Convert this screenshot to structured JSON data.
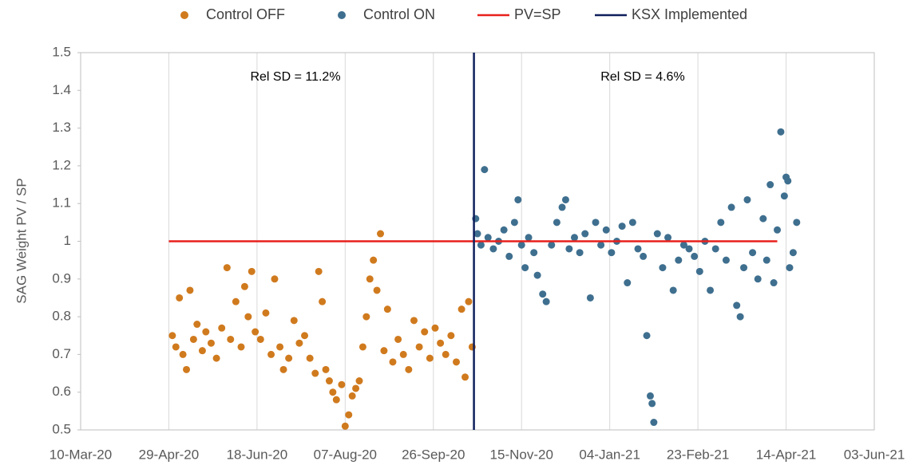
{
  "chart_data": {
    "type": "scatter",
    "y_label": "SAG Weight PV / SP",
    "annotations": [
      "Rel SD = 11.2%",
      "Rel SD = 4.6%"
    ],
    "xlim": [
      "10-Mar-20",
      "03-Jun-21"
    ],
    "xticks": [
      "10-Mar-20",
      "29-Apr-20",
      "18-Jun-20",
      "07-Aug-20",
      "26-Sep-20",
      "15-Nov-20",
      "04-Jan-21",
      "23-Feb-21",
      "14-Apr-21",
      "03-Jun-21"
    ],
    "ylim": [
      0.5,
      1.5
    ],
    "yticks": [
      0.5,
      0.6,
      0.7,
      0.8,
      0.9,
      1,
      1.1,
      1.2,
      1.3,
      1.4,
      1.5
    ],
    "grid": "x",
    "series": [
      {
        "name": "Control OFF",
        "color": "#d07a1e",
        "style": "marker",
        "x": [
          "01-May-20",
          "03-May-20",
          "05-May-20",
          "07-May-20",
          "09-May-20",
          "11-May-20",
          "13-May-20",
          "15-May-20",
          "18-May-20",
          "20-May-20",
          "23-May-20",
          "26-May-20",
          "29-May-20",
          "01-Jun-20",
          "03-Jun-20",
          "06-Jun-20",
          "09-Jun-20",
          "11-Jun-20",
          "13-Jun-20",
          "15-Jun-20",
          "17-Jun-20",
          "20-Jun-20",
          "23-Jun-20",
          "26-Jun-20",
          "28-Jun-20",
          "01-Jul-20",
          "03-Jul-20",
          "06-Jul-20",
          "09-Jul-20",
          "12-Jul-20",
          "15-Jul-20",
          "18-Jul-20",
          "21-Jul-20",
          "23-Jul-20",
          "25-Jul-20",
          "27-Jul-20",
          "29-Jul-20",
          "31-Jul-20",
          "02-Aug-20",
          "05-Aug-20",
          "07-Aug-20",
          "09-Aug-20",
          "11-Aug-20",
          "13-Aug-20",
          "15-Aug-20",
          "17-Aug-20",
          "19-Aug-20",
          "21-Aug-20",
          "23-Aug-20",
          "25-Aug-20",
          "27-Aug-20",
          "29-Aug-20",
          "31-Aug-20",
          "03-Sep-20",
          "06-Sep-20",
          "09-Sep-20",
          "12-Sep-20",
          "15-Sep-20",
          "18-Sep-20",
          "21-Sep-20",
          "24-Sep-20",
          "27-Sep-20",
          "30-Sep-20",
          "03-Oct-20",
          "06-Oct-20",
          "09-Oct-20",
          "12-Oct-20",
          "14-Oct-20",
          "16-Oct-20",
          "18-Oct-20"
        ],
        "values": [
          0.75,
          0.72,
          0.85,
          0.7,
          0.66,
          0.87,
          0.74,
          0.78,
          0.71,
          0.76,
          0.73,
          0.69,
          0.77,
          0.93,
          0.74,
          0.84,
          0.72,
          0.88,
          0.8,
          0.92,
          0.76,
          0.74,
          0.81,
          0.7,
          0.9,
          0.72,
          0.66,
          0.69,
          0.79,
          0.73,
          0.75,
          0.69,
          0.65,
          0.92,
          0.84,
          0.66,
          0.63,
          0.6,
          0.58,
          0.62,
          0.51,
          0.54,
          0.59,
          0.61,
          0.63,
          0.72,
          0.8,
          0.9,
          0.95,
          0.87,
          1.02,
          0.71,
          0.82,
          0.68,
          0.74,
          0.7,
          0.66,
          0.79,
          0.72,
          0.76,
          0.69,
          0.77,
          0.73,
          0.7,
          0.75,
          0.68,
          0.82,
          0.64,
          0.84,
          0.72
        ]
      },
      {
        "name": "Control ON",
        "color": "#3f6f8f",
        "style": "marker",
        "x": [
          "20-Oct-20",
          "21-Oct-20",
          "23-Oct-20",
          "25-Oct-20",
          "27-Oct-20",
          "30-Oct-20",
          "02-Nov-20",
          "05-Nov-20",
          "08-Nov-20",
          "11-Nov-20",
          "13-Nov-20",
          "15-Nov-20",
          "17-Nov-20",
          "19-Nov-20",
          "22-Nov-20",
          "24-Nov-20",
          "27-Nov-20",
          "29-Nov-20",
          "02-Dec-20",
          "05-Dec-20",
          "08-Dec-20",
          "10-Dec-20",
          "12-Dec-20",
          "15-Dec-20",
          "18-Dec-20",
          "21-Dec-20",
          "24-Dec-20",
          "27-Dec-20",
          "30-Dec-20",
          "02-Jan-21",
          "05-Jan-21",
          "08-Jan-21",
          "11-Jan-21",
          "14-Jan-21",
          "17-Jan-21",
          "20-Jan-21",
          "23-Jan-21",
          "25-Jan-21",
          "27-Jan-21",
          "28-Jan-21",
          "29-Jan-21",
          "31-Jan-21",
          "03-Feb-21",
          "06-Feb-21",
          "09-Feb-21",
          "12-Feb-21",
          "15-Feb-21",
          "18-Feb-21",
          "21-Feb-21",
          "24-Feb-21",
          "27-Feb-21",
          "02-Mar-21",
          "05-Mar-21",
          "08-Mar-21",
          "11-Mar-21",
          "14-Mar-21",
          "17-Mar-21",
          "19-Mar-21",
          "21-Mar-21",
          "23-Mar-21",
          "26-Mar-21",
          "29-Mar-21",
          "01-Apr-21",
          "03-Apr-21",
          "05-Apr-21",
          "07-Apr-21",
          "09-Apr-21",
          "11-Apr-21",
          "13-Apr-21",
          "14-Apr-21",
          "15-Apr-21",
          "16-Apr-21",
          "18-Apr-21",
          "20-Apr-21"
        ],
        "values": [
          1.06,
          1.02,
          0.99,
          1.19,
          1.01,
          0.98,
          1.0,
          1.03,
          0.96,
          1.05,
          1.11,
          0.99,
          0.93,
          1.01,
          0.97,
          0.91,
          0.86,
          0.84,
          0.99,
          1.05,
          1.09,
          1.11,
          0.98,
          1.01,
          0.97,
          1.02,
          0.85,
          1.05,
          0.99,
          1.03,
          0.97,
          1.0,
          1.04,
          0.89,
          1.05,
          0.98,
          0.96,
          0.75,
          0.59,
          0.57,
          0.52,
          1.02,
          0.93,
          1.01,
          0.87,
          0.95,
          0.99,
          0.98,
          0.96,
          0.92,
          1.0,
          0.87,
          0.98,
          1.05,
          0.95,
          1.09,
          0.83,
          0.8,
          0.93,
          1.11,
          0.97,
          0.9,
          1.06,
          0.95,
          1.15,
          0.89,
          1.03,
          1.29,
          1.12,
          1.17,
          1.16,
          0.93,
          0.97,
          1.05
        ]
      },
      {
        "name": "PV=SP",
        "color": "#e8201c",
        "style": "line",
        "x": [
          "29-Apr-20",
          "09-Apr-21"
        ],
        "values": [
          1,
          1
        ]
      },
      {
        "name": "KSX Implemented",
        "color": "#0e1f5b",
        "style": "line",
        "x": [
          "19-Oct-20",
          "19-Oct-20"
        ],
        "values": [
          0.5,
          1.5
        ]
      }
    ]
  }
}
